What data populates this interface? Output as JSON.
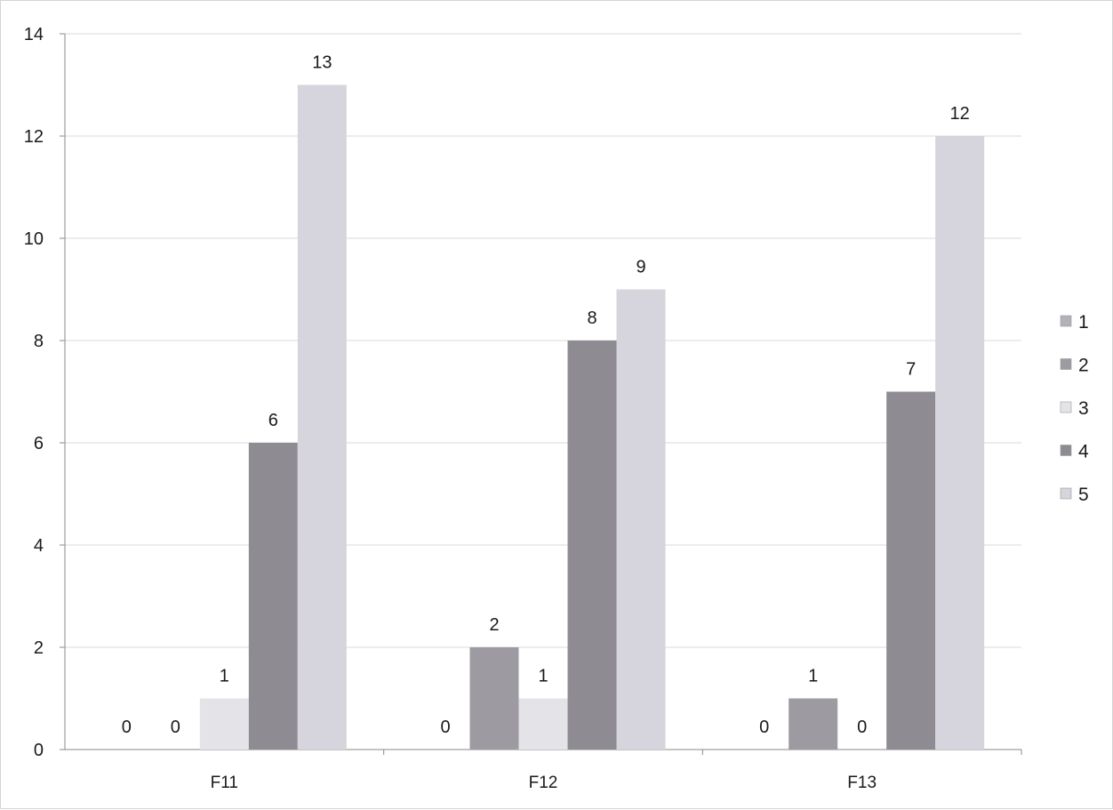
{
  "chart_data": {
    "type": "bar",
    "title": "",
    "xlabel": "",
    "ylabel": "",
    "categories": [
      "F11",
      "F12",
      "F13"
    ],
    "series": [
      {
        "name": "1",
        "values": [
          0,
          0,
          0
        ],
        "color": "#b4b2b8"
      },
      {
        "name": "2",
        "values": [
          0,
          2,
          1
        ],
        "color": "#9d9ba1"
      },
      {
        "name": "3",
        "values": [
          1,
          1,
          0
        ],
        "color": "#e4e3e8"
      },
      {
        "name": "4",
        "values": [
          6,
          8,
          7
        ],
        "color": "#8e8c92"
      },
      {
        "name": "5",
        "values": [
          13,
          9,
          12
        ],
        "color": "#d6d4dc"
      }
    ],
    "ylim": [
      0,
      14
    ],
    "yticks": [
      0,
      2,
      4,
      6,
      8,
      10,
      12,
      14
    ],
    "grid": true,
    "legend_position": "right",
    "data_labels": true
  }
}
